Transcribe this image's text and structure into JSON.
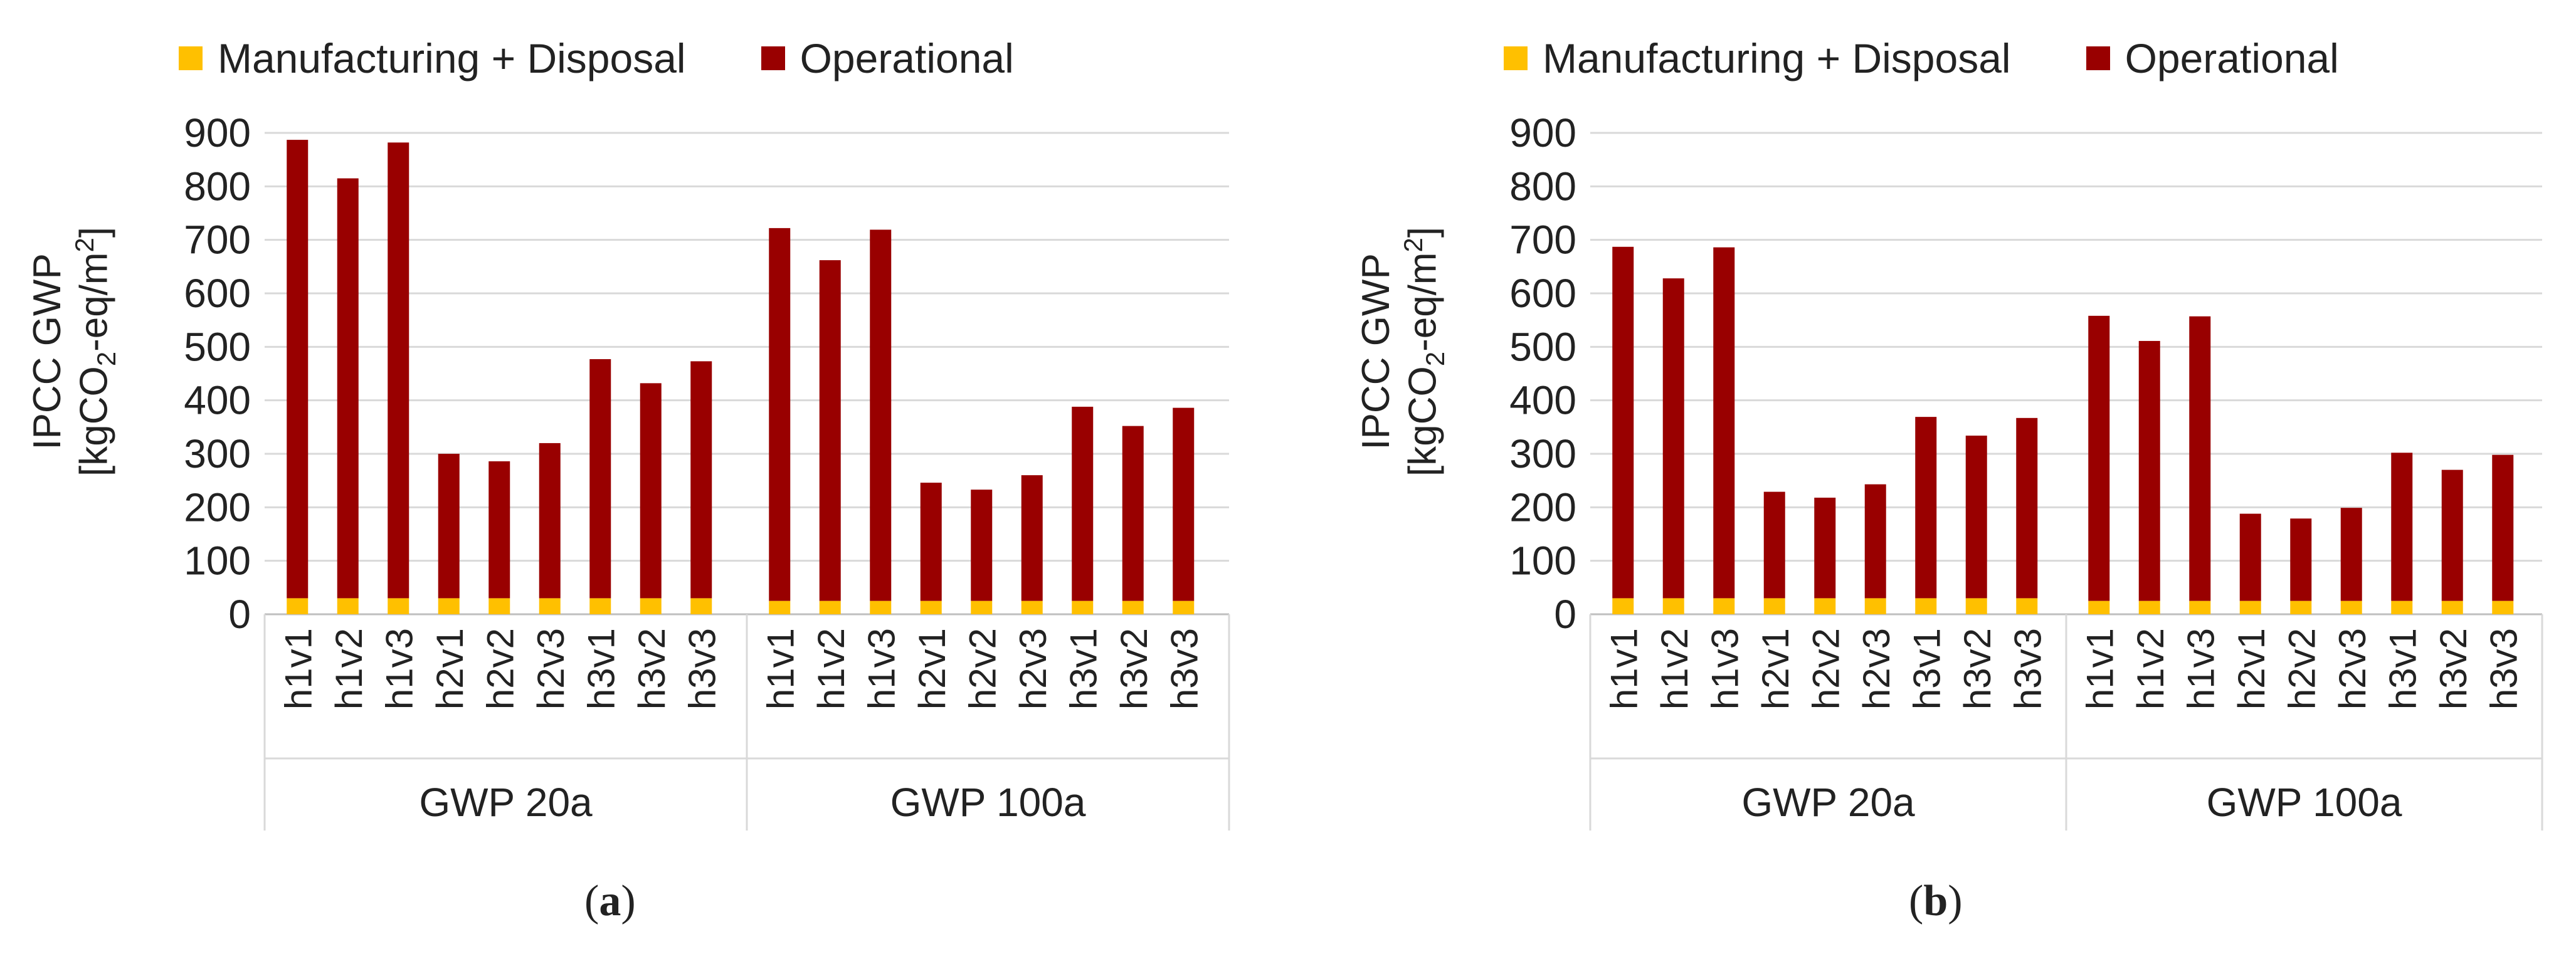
{
  "colors": {
    "manufacturing": "#FFC000",
    "operational": "#990000",
    "grid": "#d9d9d9",
    "axis": "#bfbfbf",
    "text": "#222222"
  },
  "chart_data": [
    {
      "type": "bar",
      "stacked": true,
      "caption_letter": "a",
      "legend": [
        "Manufacturing + Disposal",
        "Operational"
      ],
      "ylabel_line1": "IPCC GWP",
      "ylabel_line2_pre": "[kgCO",
      "ylabel_line2_sub": "2",
      "ylabel_line2_mid": "-eq/m",
      "ylabel_line2_sup": "2",
      "ylabel_line2_post": "]",
      "ylim": [
        0,
        900
      ],
      "yticks": [
        0,
        100,
        200,
        300,
        400,
        500,
        600,
        700,
        800,
        900
      ],
      "grid": true,
      "groups": [
        {
          "label": "GWP 20a",
          "categories": [
            "h1v1",
            "h1v2",
            "h1v3",
            "h2v1",
            "h2v2",
            "h2v3",
            "h3v1",
            "h3v2",
            "h3v3"
          ],
          "series": [
            {
              "name": "Manufacturing + Disposal",
              "values": [
                30,
                30,
                30,
                30,
                30,
                30,
                30,
                30,
                30
              ]
            },
            {
              "name": "Operational",
              "values": [
                857,
                785,
                852,
                270,
                256,
                290,
                447,
                402,
                443
              ]
            }
          ]
        },
        {
          "label": "GWP 100a",
          "categories": [
            "h1v1",
            "h1v2",
            "h1v3",
            "h2v1",
            "h2v2",
            "h2v3",
            "h3v1",
            "h3v2",
            "h3v3"
          ],
          "series": [
            {
              "name": "Manufacturing + Disposal",
              "values": [
                25,
                25,
                25,
                25,
                25,
                25,
                25,
                25,
                25
              ]
            },
            {
              "name": "Operational",
              "values": [
                697,
                637,
                694,
                221,
                208,
                235,
                363,
                327,
                361
              ]
            }
          ]
        }
      ]
    },
    {
      "type": "bar",
      "stacked": true,
      "caption_letter": "b",
      "legend": [
        "Manufacturing + Disposal",
        "Operational"
      ],
      "ylabel_line1": "IPCC GWP",
      "ylabel_line2_pre": "[kgCO",
      "ylabel_line2_sub": "2",
      "ylabel_line2_mid": "-eq/m",
      "ylabel_line2_sup": "2",
      "ylabel_line2_post": "]",
      "ylim": [
        0,
        900
      ],
      "yticks": [
        0,
        100,
        200,
        300,
        400,
        500,
        600,
        700,
        800,
        900
      ],
      "grid": true,
      "groups": [
        {
          "label": "GWP 20a",
          "categories": [
            "h1v1",
            "h1v2",
            "h1v3",
            "h2v1",
            "h2v2",
            "h2v3",
            "h3v1",
            "h3v2",
            "h3v3"
          ],
          "series": [
            {
              "name": "Manufacturing + Disposal",
              "values": [
                30,
                30,
                30,
                30,
                30,
                30,
                30,
                30,
                30
              ]
            },
            {
              "name": "Operational",
              "values": [
                657,
                598,
                656,
                199,
                188,
                213,
                339,
                304,
                337
              ]
            }
          ]
        },
        {
          "label": "GWP 100a",
          "categories": [
            "h1v1",
            "h1v2",
            "h1v3",
            "h2v1",
            "h2v2",
            "h2v3",
            "h3v1",
            "h3v2",
            "h3v3"
          ],
          "series": [
            {
              "name": "Manufacturing + Disposal",
              "values": [
                25,
                25,
                25,
                25,
                25,
                25,
                25,
                25,
                25
              ]
            },
            {
              "name": "Operational",
              "values": [
                533,
                486,
                532,
                163,
                154,
                174,
                277,
                245,
                273
              ]
            }
          ]
        }
      ]
    }
  ]
}
